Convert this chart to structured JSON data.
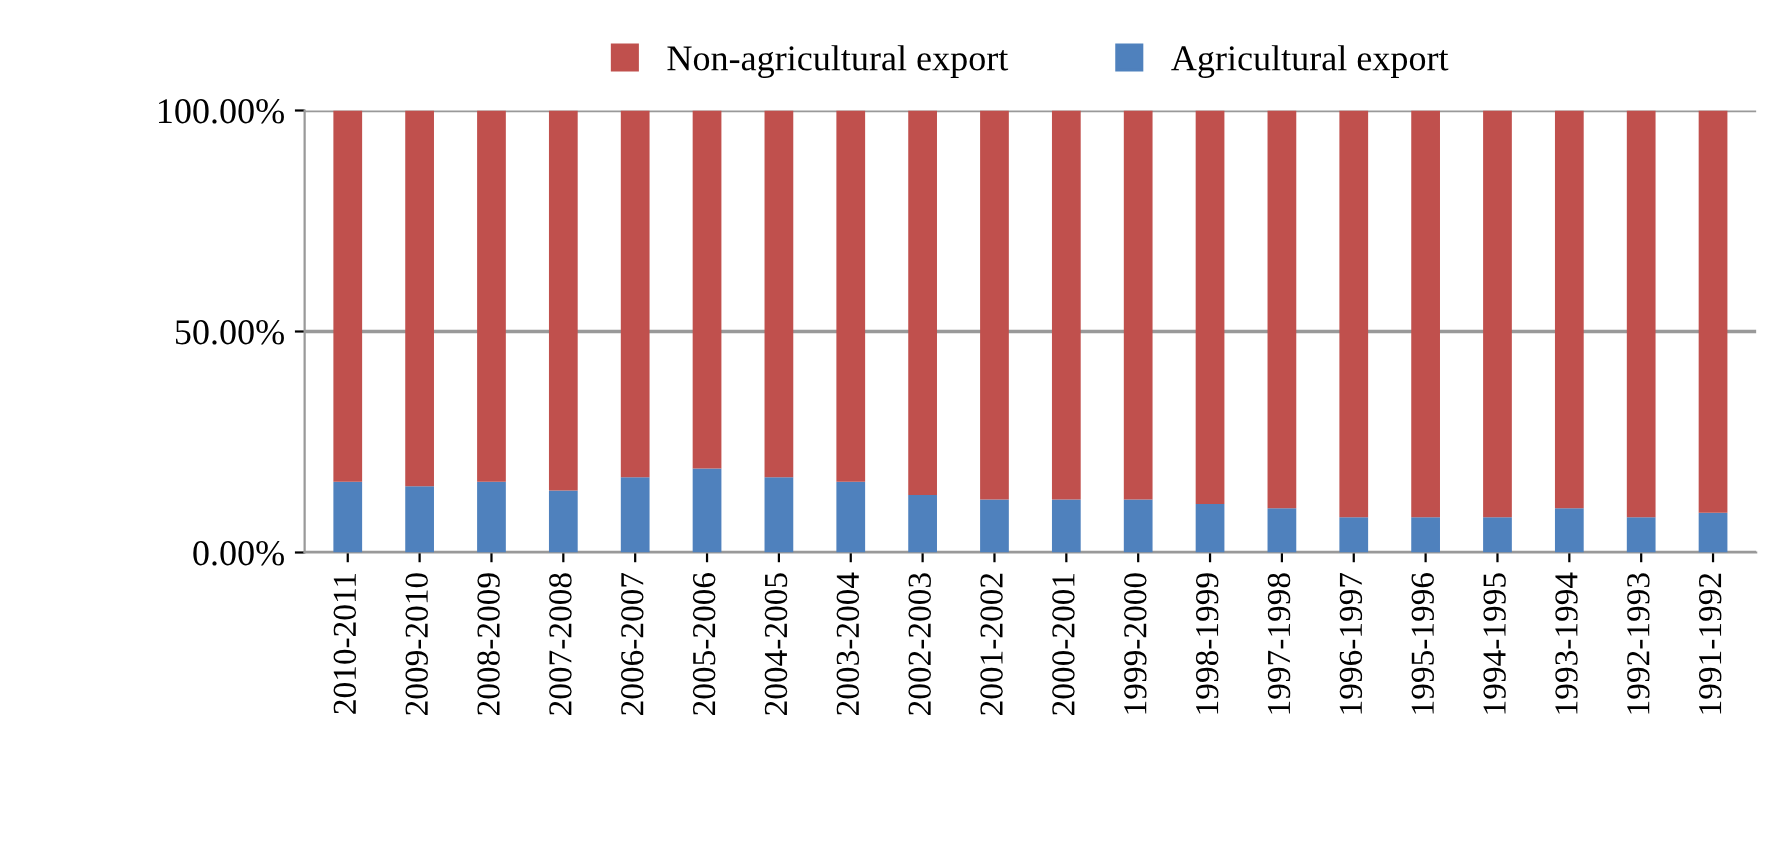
{
  "chart_data": {
    "type": "bar",
    "stacked": true,
    "categories": [
      "2010-2011",
      "2009-2010",
      "2008-2009",
      "2007-2008",
      "2006-2007",
      "2005-2006",
      "2004-2005",
      "2003-2004",
      "2002-2003",
      "2001-2002",
      "2000-2001",
      "1999-2000",
      "1998-1999",
      "1997-1998",
      "1996-1997",
      "1995-1996",
      "1994-1995",
      "1993-1994",
      "1992-1993",
      "1991-1992"
    ],
    "series": [
      {
        "name": "Agricultural export",
        "color": "#4f81bd",
        "values": [
          16,
          15,
          16,
          14,
          17,
          19,
          17,
          16,
          13,
          12,
          12,
          12,
          11,
          10,
          8,
          8,
          8,
          10,
          8,
          9
        ]
      },
      {
        "name": "Non-agricultural export",
        "color": "#c0504d",
        "values": [
          84,
          85,
          84,
          86,
          83,
          81,
          83,
          84,
          87,
          88,
          88,
          88,
          89,
          90,
          92,
          92,
          92,
          90,
          92,
          91
        ]
      }
    ],
    "ylim": [
      0,
      100
    ],
    "yticks": [
      {
        "value": 0,
        "label": "0.00%"
      },
      {
        "value": 50,
        "label": "50.00%"
      },
      {
        "value": 100,
        "label": "100.00%"
      }
    ],
    "grid": "y",
    "legend": "top"
  }
}
